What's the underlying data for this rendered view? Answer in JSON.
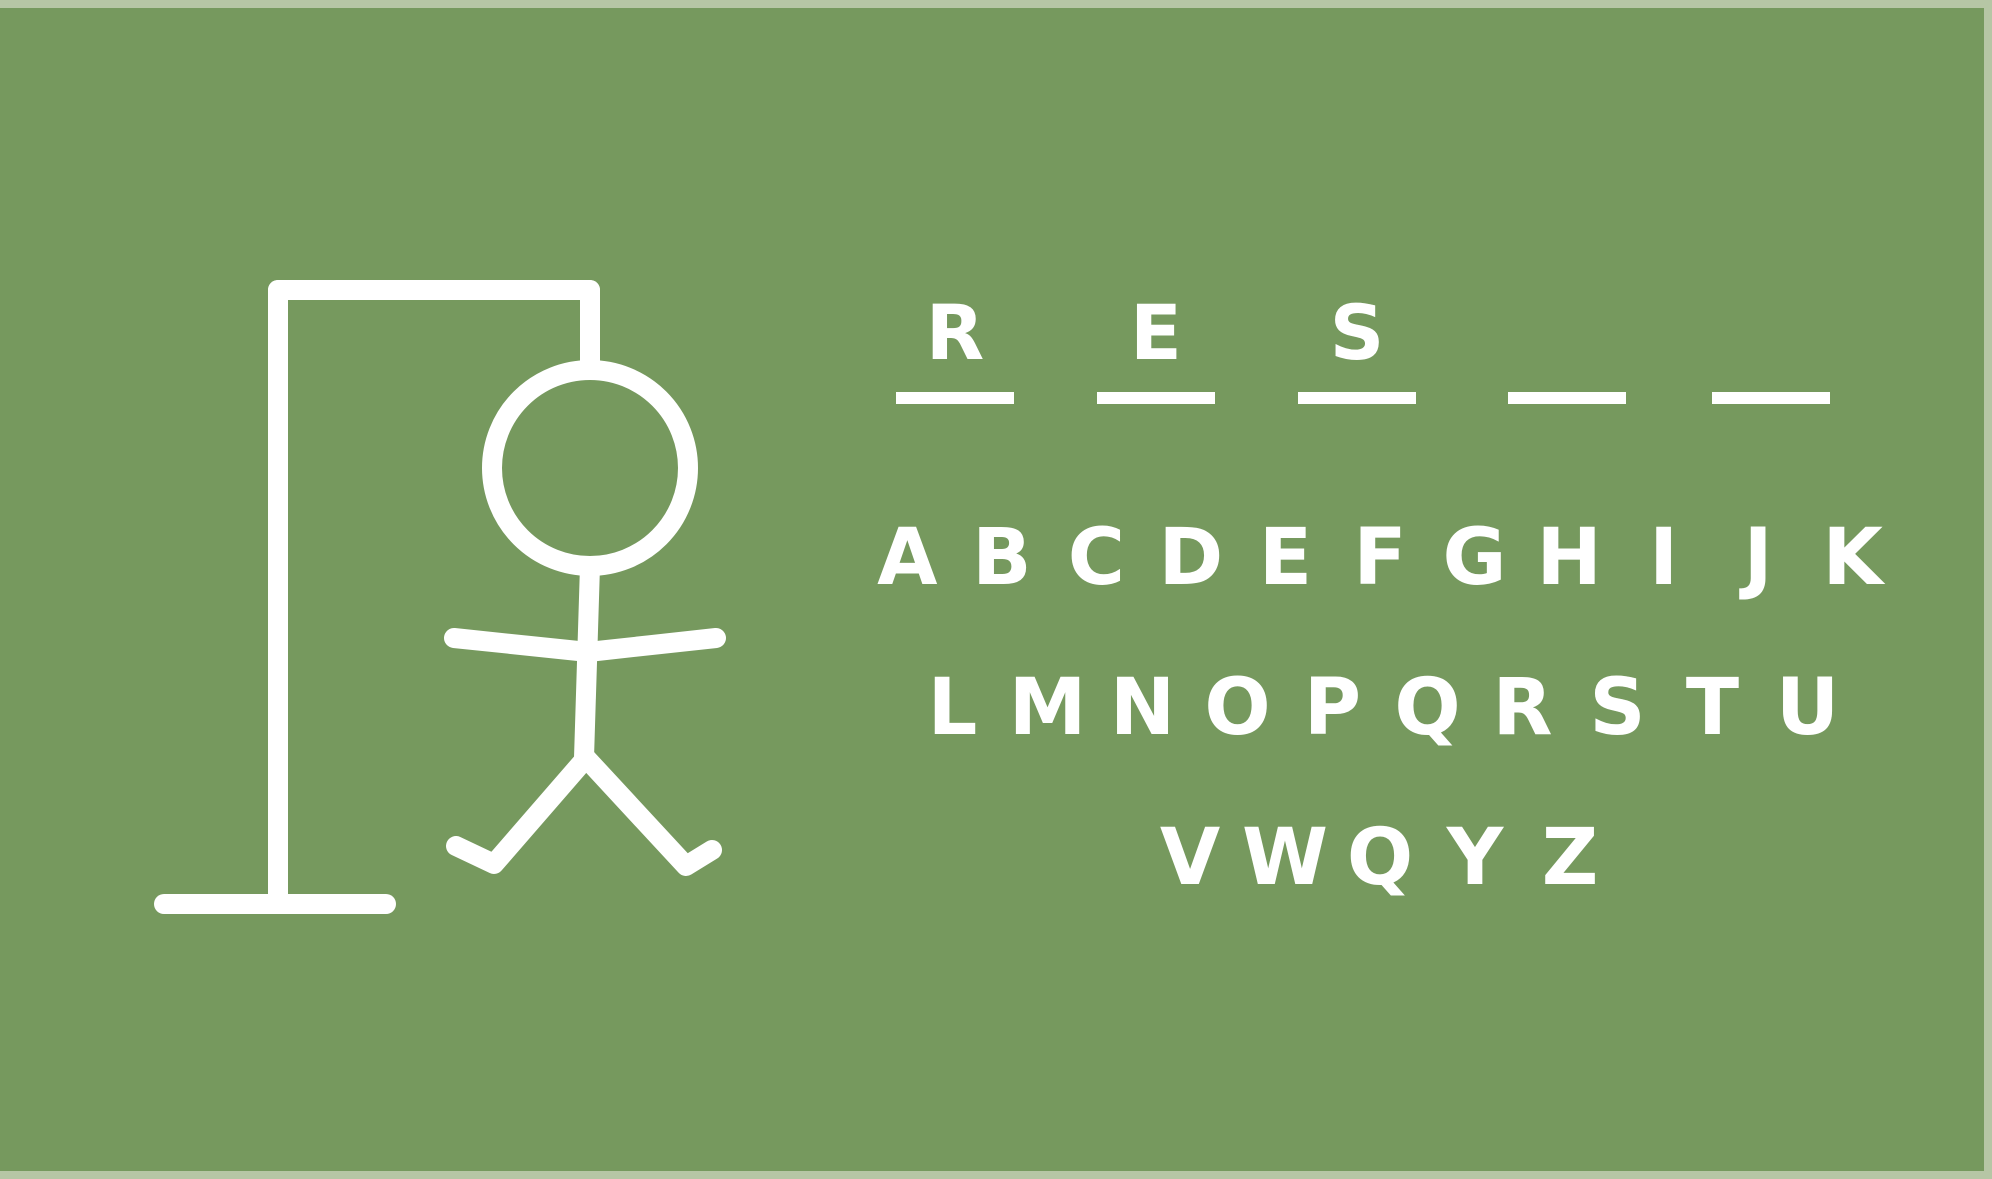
{
  "word": {
    "slots": [
      "R",
      "E",
      "S",
      "",
      ""
    ]
  },
  "keyboard": {
    "rows": [
      [
        "A",
        "B",
        "C",
        "D",
        "E",
        "F",
        "G",
        "H",
        "I",
        "J",
        "K"
      ],
      [
        "L",
        "M",
        "N",
        "O",
        "P",
        "Q",
        "R",
        "S",
        "T",
        "U"
      ],
      [
        "V",
        "W",
        "Q",
        "Y",
        "Z"
      ]
    ]
  },
  "colors": {
    "board": "#76995e",
    "frame": "#b6c6a5",
    "ink": "#ffffff"
  }
}
